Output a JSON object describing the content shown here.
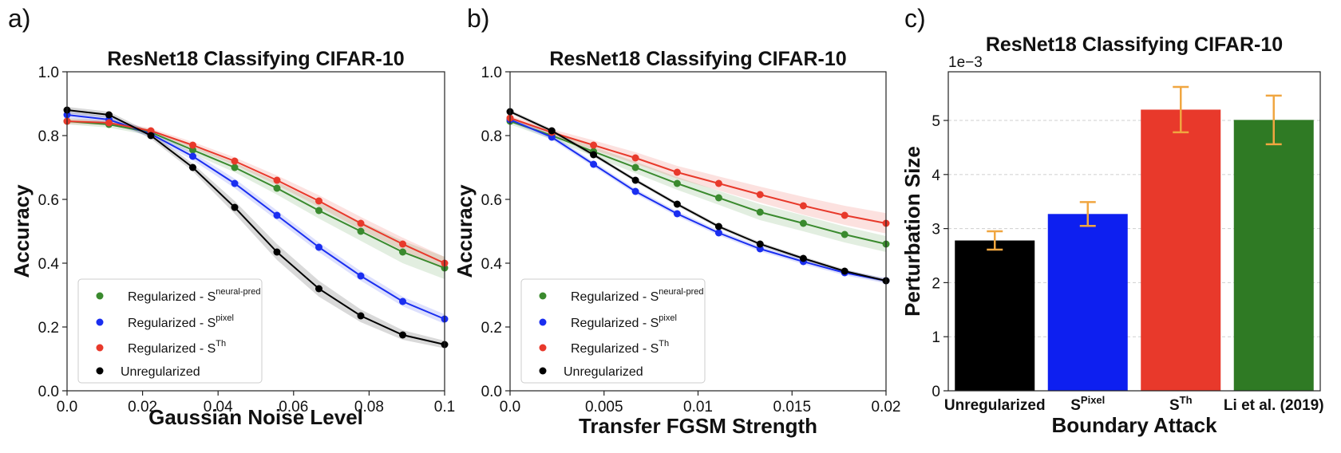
{
  "chart_data": [
    {
      "panel_label": "a)",
      "type": "line",
      "title": "ResNet18 Classifying CIFAR-10",
      "xlabel": "Gaussian Noise Level",
      "ylabel": "Accuracy",
      "xlim": [
        0,
        0.1
      ],
      "ylim": [
        0,
        1.0
      ],
      "xticks": [
        "0.0",
        "0.02",
        "0.04",
        "0.06",
        "0.08",
        "0.1"
      ],
      "yticks": [
        "0.0",
        "0.2",
        "0.4",
        "0.6",
        "0.8",
        "1.0"
      ],
      "legend_position": "lower-left",
      "x": [
        0,
        0.0111,
        0.0222,
        0.0333,
        0.0444,
        0.0556,
        0.0667,
        0.0778,
        0.0889,
        0.1
      ],
      "series": [
        {
          "label": "Regularized - S",
          "sup": "neural-pred",
          "color": "#3a8a2e",
          "values": [
            0.845,
            0.835,
            0.81,
            0.755,
            0.7,
            0.635,
            0.565,
            0.5,
            0.435,
            0.385
          ],
          "band": [
            0.01,
            0.01,
            0.01,
            0.012,
            0.015,
            0.02,
            0.025,
            0.03,
            0.035,
            0.035
          ]
        },
        {
          "label": "Regularized - S",
          "sup": "pixel",
          "color": "#1a2ef0",
          "values": [
            0.865,
            0.85,
            0.805,
            0.735,
            0.65,
            0.55,
            0.45,
            0.36,
            0.28,
            0.225
          ],
          "band": [
            0.01,
            0.01,
            0.01,
            0.012,
            0.015,
            0.015,
            0.015,
            0.015,
            0.015,
            0.015
          ]
        },
        {
          "label": "Regularized - S",
          "sup": "Th",
          "color": "#e8392b",
          "values": [
            0.845,
            0.84,
            0.815,
            0.77,
            0.72,
            0.66,
            0.595,
            0.525,
            0.46,
            0.4
          ],
          "band": [
            0.008,
            0.008,
            0.008,
            0.01,
            0.012,
            0.015,
            0.018,
            0.02,
            0.02,
            0.02
          ]
        },
        {
          "label": "Unregularized",
          "sup": "",
          "color": "#000000",
          "values": [
            0.88,
            0.865,
            0.8,
            0.7,
            0.575,
            0.435,
            0.32,
            0.235,
            0.175,
            0.145
          ],
          "band": [
            0.01,
            0.01,
            0.01,
            0.012,
            0.02,
            0.025,
            0.025,
            0.02,
            0.015,
            0.012
          ]
        }
      ]
    },
    {
      "panel_label": "b)",
      "type": "line",
      "title": "ResNet18 Classifying CIFAR-10",
      "xlabel": "Transfer FGSM Strength",
      "ylabel": "Accuracy",
      "xlim": [
        0,
        0.02
      ],
      "ylim": [
        0,
        1.0
      ],
      "xticks": [
        "0.0",
        "0.005",
        "0.01",
        "0.015",
        "0.02"
      ],
      "yticks": [
        "0.0",
        "0.2",
        "0.4",
        "0.6",
        "0.8",
        "1.0"
      ],
      "legend_position": "lower-left",
      "x": [
        0,
        0.00222,
        0.00444,
        0.00667,
        0.00889,
        0.0111,
        0.0133,
        0.0156,
        0.0178,
        0.02
      ],
      "series": [
        {
          "label": "Regularized - S",
          "sup": "neural-pred",
          "color": "#3a8a2e",
          "values": [
            0.845,
            0.8,
            0.75,
            0.7,
            0.65,
            0.605,
            0.56,
            0.525,
            0.49,
            0.46
          ],
          "band": [
            0.01,
            0.012,
            0.015,
            0.018,
            0.02,
            0.022,
            0.025,
            0.025,
            0.025,
            0.025
          ]
        },
        {
          "label": "Regularized - S",
          "sup": "pixel",
          "color": "#1a2ef0",
          "values": [
            0.85,
            0.795,
            0.71,
            0.625,
            0.555,
            0.495,
            0.445,
            0.405,
            0.37,
            0.345
          ],
          "band": [
            0.008,
            0.008,
            0.008,
            0.008,
            0.008,
            0.008,
            0.008,
            0.008,
            0.008,
            0.008
          ]
        },
        {
          "label": "Regularized - S",
          "sup": "Th",
          "color": "#e8392b",
          "values": [
            0.855,
            0.81,
            0.77,
            0.73,
            0.685,
            0.65,
            0.615,
            0.58,
            0.55,
            0.525
          ],
          "band": [
            0.008,
            0.01,
            0.015,
            0.018,
            0.02,
            0.022,
            0.025,
            0.028,
            0.03,
            0.032
          ]
        },
        {
          "label": "Unregularized",
          "sup": "",
          "color": "#000000",
          "values": [
            0.875,
            0.815,
            0.74,
            0.66,
            0.585,
            0.515,
            0.46,
            0.415,
            0.375,
            0.345
          ],
          "band": [
            0.006,
            0.006,
            0.006,
            0.006,
            0.006,
            0.006,
            0.006,
            0.006,
            0.006,
            0.006
          ]
        }
      ]
    },
    {
      "panel_label": "c)",
      "type": "bar",
      "title": "ResNet18 Classifying CIFAR-10",
      "xlabel": "Boundary Attack",
      "ylabel": "Perturbation Size",
      "scale_label": "1e−3",
      "ylim": [
        0,
        5.9
      ],
      "yticks": [
        "0",
        "1",
        "2",
        "3",
        "4",
        "5"
      ],
      "grid": true,
      "categories": [
        {
          "base": "Unregularized",
          "sup": ""
        },
        {
          "base": "S",
          "sup": "Pixel"
        },
        {
          "base": "S",
          "sup": "Th"
        },
        {
          "base": "Li et al. (2019)",
          "sup": ""
        }
      ],
      "values": [
        2.78,
        3.27,
        5.2,
        5.01
      ],
      "errors": [
        0.17,
        0.22,
        0.42,
        0.45
      ],
      "colors": [
        "#000000",
        "#0d1ff0",
        "#e8392b",
        "#2f7a24"
      ],
      "error_color": "#f0a640"
    }
  ]
}
